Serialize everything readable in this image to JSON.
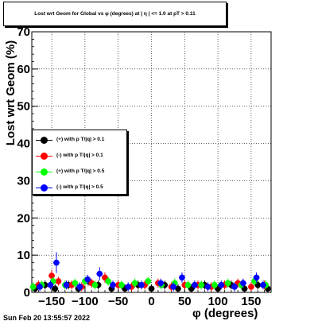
{
  "chart_data": {
    "type": "scatter",
    "title": "Lost wrt Geom for Global vs φ (degrees) at |  η | <= 1.0 at pT > 0.11",
    "xlabel": "φ (degrees)",
    "ylabel": "Lost wrt Geom (%)",
    "xlim": [
      -180,
      180
    ],
    "ylim": [
      0,
      70
    ],
    "xticks": [
      -150,
      -100,
      -50,
      0,
      50,
      100,
      150
    ],
    "xtick_labels": [
      "−150",
      "−100",
      "−50",
      "0",
      "50",
      "100",
      "150"
    ],
    "yticks": [
      0,
      10,
      20,
      30,
      40,
      50,
      60,
      70
    ],
    "ytick_labels": [
      "0",
      "10",
      "20",
      "30",
      "40",
      "50",
      "60",
      "70"
    ],
    "grid": true,
    "legend_position": "left-middle",
    "series": [
      {
        "name": "(+) with p T/|q| > 0.1",
        "color": "#000000",
        "x": [
          -175,
          -160,
          -145,
          -125,
          -110,
          -95,
          -80,
          -60,
          -40,
          -20,
          0,
          20,
          40,
          60,
          80,
          100,
          120,
          140,
          160,
          175
        ],
        "y": [
          1,
          2,
          1,
          2,
          1,
          3,
          2,
          1,
          1,
          2,
          1,
          2,
          1,
          1,
          2,
          1,
          2,
          1,
          2,
          1
        ]
      },
      {
        "name": "(-) with p T/|q| > 0.1",
        "color": "#ff0000",
        "x": [
          -170,
          -150,
          -140,
          -120,
          -105,
          -90,
          -70,
          -50,
          -30,
          -10,
          10,
          30,
          50,
          70,
          90,
          110,
          130,
          150,
          170
        ],
        "y": [
          2,
          4.5,
          3,
          2,
          1.5,
          2.5,
          4,
          2,
          1.5,
          2,
          2.5,
          1.5,
          2,
          2,
          1.5,
          2,
          2.5,
          1.5,
          2
        ]
      },
      {
        "name": "(+) with p T/|q| > 0.5",
        "color": "#00ff00",
        "x": [
          -178,
          -165,
          -148,
          -130,
          -115,
          -100,
          -85,
          -65,
          -45,
          -25,
          -5,
          15,
          35,
          55,
          75,
          95,
          115,
          135,
          155,
          172
        ],
        "y": [
          1.5,
          2,
          3,
          2,
          2.5,
          3,
          2,
          3,
          2,
          2.5,
          3,
          2,
          2.5,
          2,
          2,
          2,
          2.5,
          2,
          3,
          2
        ]
      },
      {
        "name": "(-) with p T/|q| > 0.5",
        "color": "#0000ff",
        "x": [
          -168,
          -152,
          -143,
          -128,
          -108,
          -96,
          -78,
          -58,
          -35,
          -15,
          14,
          33,
          46,
          65,
          85,
          105,
          125,
          138,
          158,
          168
        ],
        "y": [
          1.5,
          2,
          8,
          2,
          1.5,
          3.5,
          5,
          2,
          1.5,
          2,
          2.5,
          1.5,
          4,
          2,
          1.5,
          2,
          1.5,
          2.5,
          4,
          2
        ]
      }
    ]
  },
  "legend": {
    "items": [
      {
        "label": "(+) with p T/|q| > 0.1",
        "color": "#000000"
      },
      {
        "label": "(-) with p T/|q| > 0.1",
        "color": "#ff0000"
      },
      {
        "label": "(+) with p T/|q| > 0.5",
        "color": "#00ff00"
      },
      {
        "label": "(-) with p T/|q| > 0.5",
        "color": "#0000ff"
      }
    ]
  },
  "timestamp": "Sun Feb 20 13:55:57 2022"
}
